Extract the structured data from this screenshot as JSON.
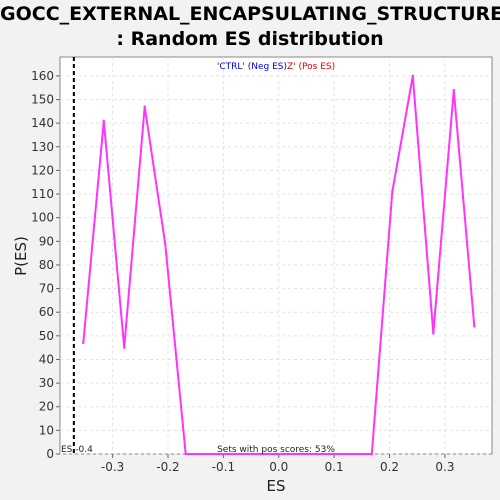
{
  "chart_data": {
    "type": "line",
    "title_line1": "GOCC_EXTERNAL_ENCAPSULATING_STRUCTURE",
    "title_line2": ": Random ES distribution",
    "xlabel": "ES",
    "ylabel": "P(ES)",
    "xlim": [
      -0.395,
      0.385
    ],
    "ylim": [
      0,
      168
    ],
    "x_ticks": [
      -0.3,
      -0.2,
      -0.1,
      0.0,
      0.1,
      0.2,
      0.3
    ],
    "x_tick_labels": [
      "-0.3",
      "-0.2",
      "-0.1",
      "0.0",
      "0.1",
      "0.2",
      "0.3"
    ],
    "y_ticks": [
      0,
      10,
      20,
      30,
      40,
      50,
      60,
      70,
      80,
      90,
      100,
      110,
      120,
      130,
      140,
      150,
      160
    ],
    "y_tick_labels": [
      "0",
      "10",
      "20",
      "30",
      "40",
      "50",
      "60",
      "70",
      "80",
      "90",
      "100",
      "110",
      "120",
      "130",
      "140",
      "150",
      "160"
    ],
    "grid": true,
    "series": [
      {
        "color": "#ff33ff",
        "x": [
          -0.353,
          -0.316,
          -0.279,
          -0.242,
          -0.205,
          -0.168,
          0.168,
          0.205,
          0.242,
          0.279,
          0.316,
          0.353
        ],
        "y": [
          47,
          141,
          45,
          147,
          89,
          0,
          0,
          111,
          160,
          51,
          154,
          54
        ]
      }
    ],
    "es_marker": {
      "x": -0.37,
      "color": "#000000"
    },
    "es_marker_label": "ES -0.4",
    "legend": {
      "neg_label": "'CTRL' (Neg ES)",
      "neg_color": "#0000dd",
      "separator": "'",
      "pos_label": "Z' (Pos ES)",
      "pos_color": "#dd0000"
    },
    "annotation": "Sets with pos scores: 53%"
  }
}
